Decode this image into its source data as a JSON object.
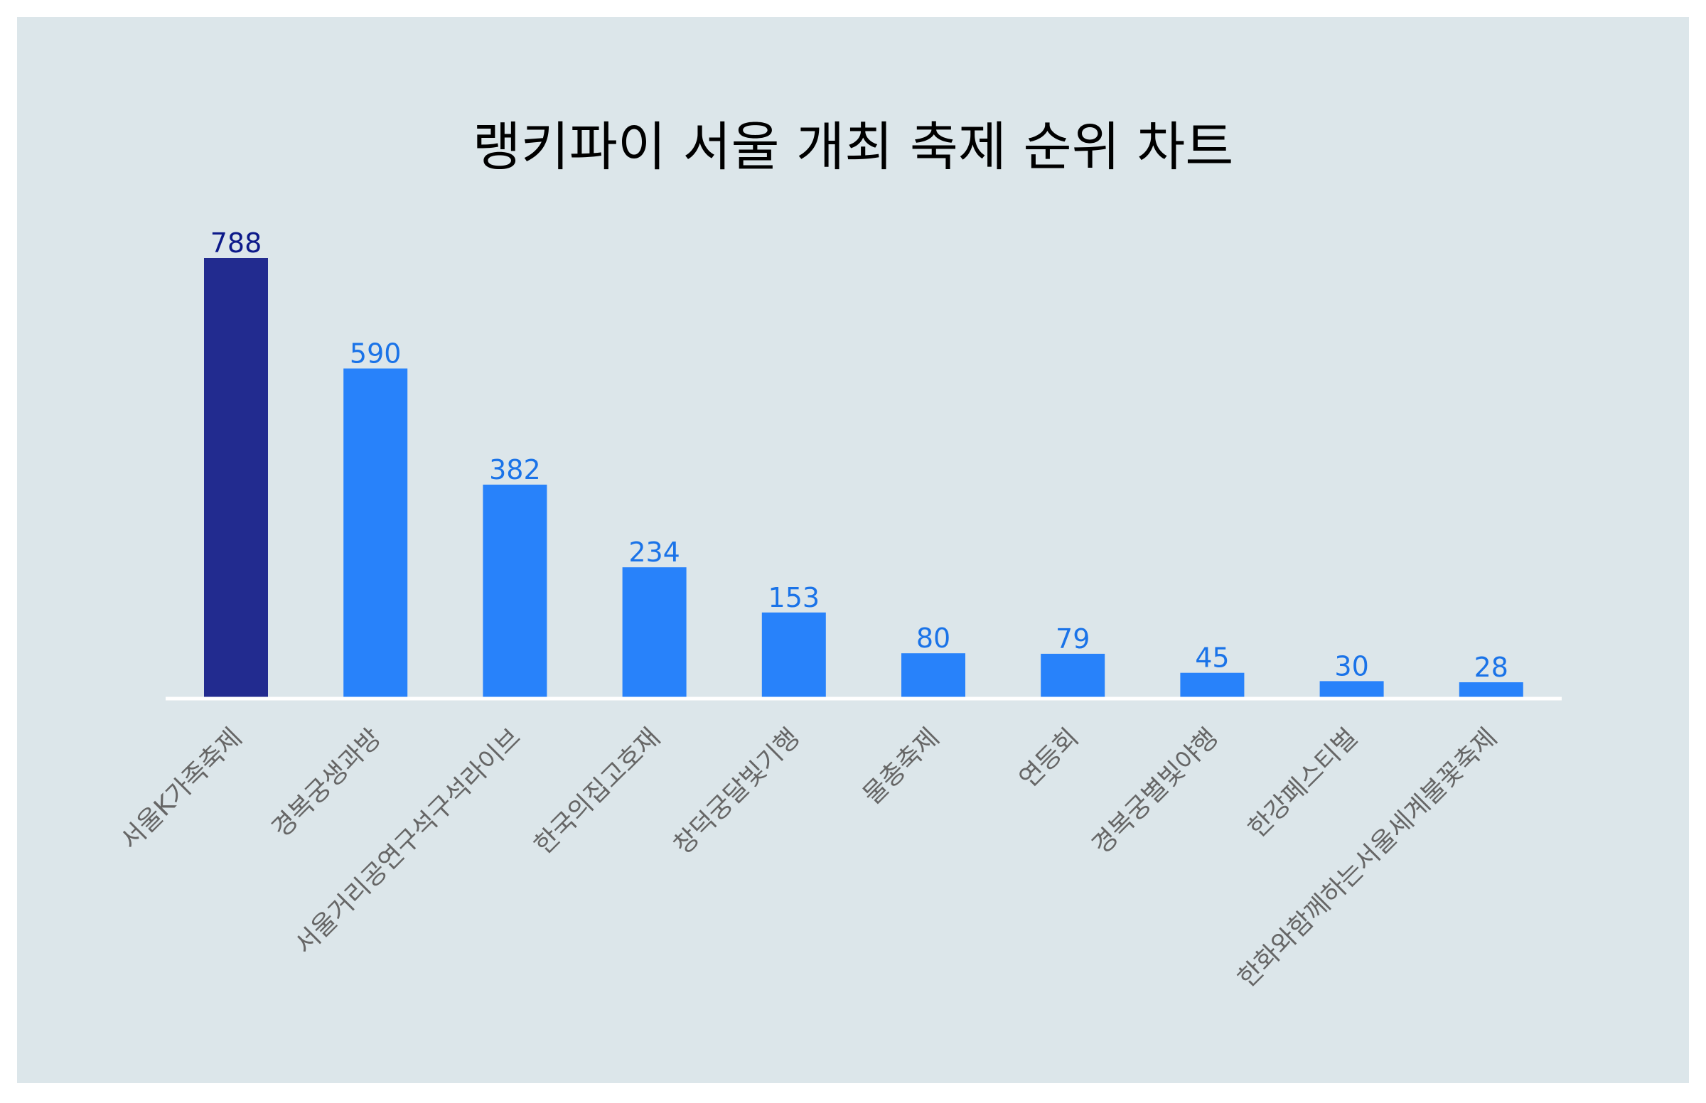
{
  "colors": {
    "panel_background": "#dce6ea",
    "highlight_bar": "#222b8f",
    "bar": "#2882fa",
    "highlight_label": "#0d1a8a",
    "value_label": "#1a73e8",
    "baseline": "#ffffff",
    "category_label": "#666666"
  },
  "chart_data": {
    "type": "bar",
    "title": "랭키파이 서울 개최 축제 순위 차트",
    "xlabel": "",
    "ylabel": "",
    "categories": [
      "서울K가족축제",
      "경복궁생과방",
      "서울거리공연구석구석라이브",
      "한국의집고호재",
      "창덕궁달빛기행",
      "물총축제",
      "연등회",
      "경복궁별빛야행",
      "한강페스티벌",
      "한화와함께하는서울세계불꽃축제"
    ],
    "values": [
      788,
      590,
      382,
      234,
      153,
      80,
      79,
      45,
      30,
      28
    ],
    "highlight_index": 0,
    "ylim": [
      0,
      788
    ],
    "grid": false,
    "legend": "none"
  }
}
